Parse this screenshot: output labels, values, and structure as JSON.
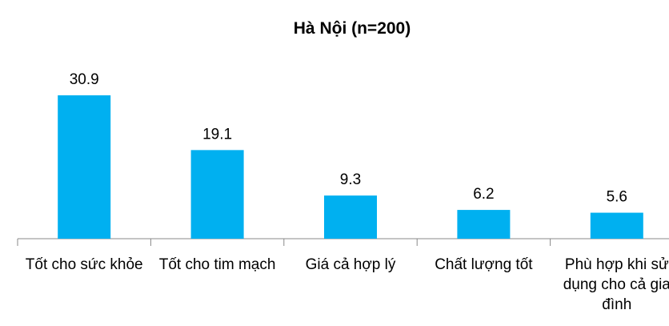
{
  "chart_data": {
    "type": "bar",
    "title": "Hà Nội (n=200)",
    "categories": [
      "Tốt cho sức khỏe",
      "Tốt cho tim mạch",
      "Giá cả hợp lý",
      "Chất lượng tốt",
      "Phù hợp khi sử dụng cho cả gia đình"
    ],
    "values": [
      30.9,
      19.1,
      9.3,
      6.2,
      5.6
    ],
    "color": "#00b0f0"
  }
}
